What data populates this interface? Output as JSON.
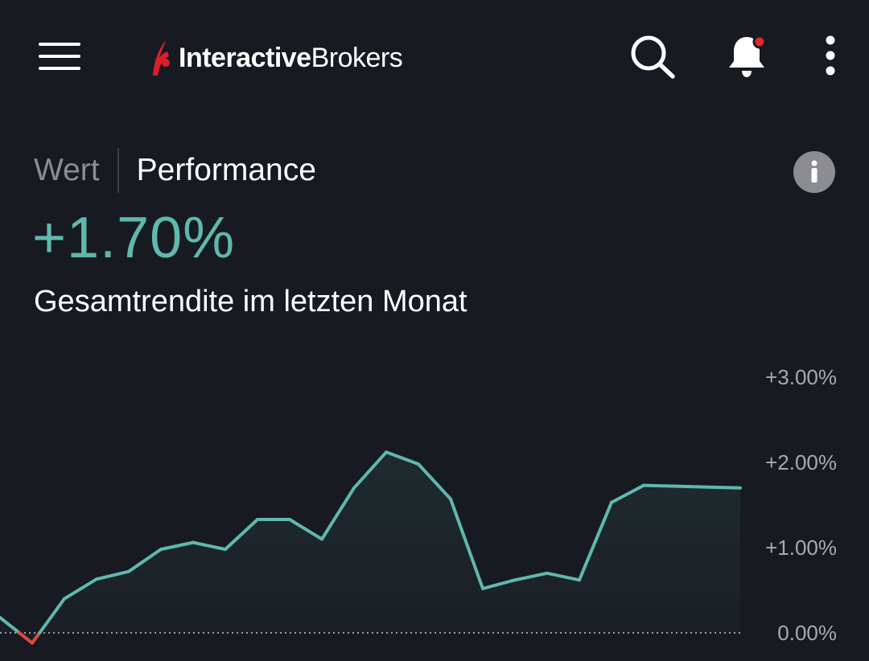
{
  "header": {
    "logo_bold": "Interactive",
    "logo_light": "Brokers",
    "icons": [
      "menu-icon",
      "search-icon",
      "bell-icon",
      "more-vertical-icon"
    ],
    "notification_dot_color": "#e3262f"
  },
  "tabs": {
    "value_label": "Wert",
    "performance_label": "Performance",
    "active": "Performance"
  },
  "summary": {
    "return_value": "+1.70%",
    "caption": "Gesamtrendite im letzten Monat"
  },
  "colors": {
    "background": "#171a21",
    "positive": "#5fb8ae",
    "negative": "#e0483f",
    "tab_inactive": "#8b8d92"
  },
  "chart_data": {
    "type": "area",
    "y_ticks": [
      "+3.00%",
      "+2.00%",
      "+1.00%",
      "0.00%"
    ],
    "y_tick_values": [
      3,
      2,
      1,
      0
    ],
    "ylim": [
      -0.2,
      3.0
    ],
    "x": [
      0,
      1,
      2,
      3,
      4,
      5,
      6,
      7,
      8,
      9,
      10,
      11,
      12,
      13,
      14,
      15,
      16,
      17,
      18,
      19,
      20,
      21,
      22,
      23
    ],
    "series": [
      {
        "values": [
          0.18,
          -0.12,
          0.4,
          0.63,
          0.72,
          0.98,
          1.06,
          0.98,
          1.33,
          1.33,
          1.1,
          1.7,
          2.12,
          1.98,
          1.57,
          0.52,
          0.62,
          0.7,
          0.62,
          1.53,
          1.73,
          1.72,
          1.71,
          1.7
        ]
      }
    ],
    "grid": false,
    "baseline": 0
  }
}
